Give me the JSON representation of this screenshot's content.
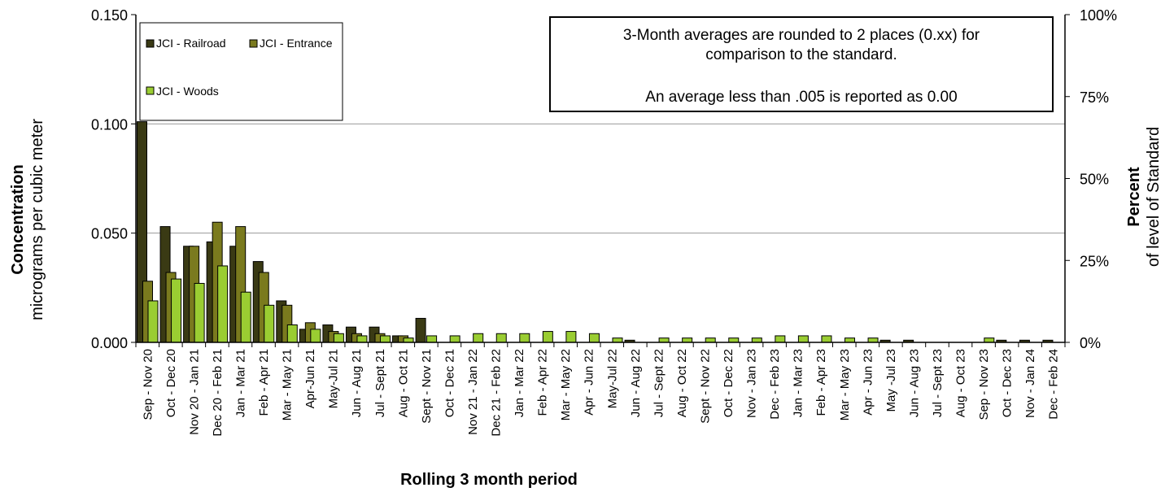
{
  "chart_data": {
    "type": "bar",
    "xlabel": "Rolling 3 month period",
    "ylabel_bold": "Concentration",
    "ylabel": "micrograms per cubic meter",
    "y2label_bold": "Percent",
    "y2label": "of level of Standard",
    "ylim": [
      0,
      0.15
    ],
    "yticks": [
      "0.000",
      "0.050",
      "0.100",
      "0.150"
    ],
    "yticks_values": [
      0,
      0.05,
      0.1,
      0.15
    ],
    "y2ticks": [
      "0%",
      "25%",
      "50%",
      "75%",
      "100%"
    ],
    "y2ticks_fraction": [
      0,
      0.25,
      0.5,
      0.75,
      1.0
    ],
    "grid_values": [
      0.05,
      0.1
    ],
    "annotation": [
      "3-Month averages are rounded to 2 places (0.xx) for",
      "comparison to the standard.",
      "",
      "An average less than .005 is reported as 0.00"
    ],
    "legend": [
      {
        "name": "JCI - Railroad",
        "color": "#3a3a14"
      },
      {
        "name": "JCI - Entrance",
        "color": "#7a7a1e"
      },
      {
        "name": "JCI - Woods",
        "color": "#9acd32"
      }
    ],
    "categories": [
      "Sep - Nov 20",
      "Oct - Dec 20",
      "Nov 20 - Jan 21",
      "Dec 20 - Feb 21",
      "Jan - Mar 21",
      "Feb - Apr 21",
      "Mar - May 21",
      "Apr-Jun 21",
      "May-Jul 21",
      "Jun - Aug 21",
      "Jul - Sept 21",
      "Aug - Oct 21",
      "Sept - Nov 21",
      "Oct - Dec 21",
      "Nov 21 - Jan 22",
      "Dec 21 - Feb 22",
      "Jan - Mar 22",
      "Feb - Apr 22",
      "Mar - May 22",
      "Apr - Jun 22",
      "May-Jul 22",
      "Jun - Aug 22",
      "Jul - Sept 22",
      "Aug - Oct 22",
      "Sept - Nov 22",
      "Oct - Dec 22",
      "Nov - Jan 23",
      "Dec - Feb 23",
      "Jan - Mar 23",
      "Feb - Apr 23",
      "Mar - May 23",
      "Apr - Jun 23",
      "May -Jul 23",
      "Jun - Aug 23",
      "Jul - Sept 23",
      "Aug - Oct 23",
      "Sep - Nov 23",
      "Oct - Dec 23",
      "Nov - Jan 24",
      "Dec - Feb 24"
    ],
    "series": [
      {
        "name": "JCI - Railroad",
        "color": "#3a3a14",
        "values": [
          0.101,
          0.053,
          0.044,
          0.046,
          0.044,
          0.037,
          0.019,
          0.006,
          0.008,
          0.007,
          0.007,
          0.003,
          0.011,
          null,
          null,
          null,
          null,
          null,
          null,
          null,
          null,
          0.001,
          null,
          null,
          null,
          null,
          null,
          null,
          null,
          null,
          null,
          null,
          0.001,
          0.001,
          null,
          null,
          null,
          0.001,
          0.001,
          0.001
        ]
      },
      {
        "name": "JCI - Entrance",
        "color": "#7a7a1e",
        "values": [
          0.028,
          0.032,
          0.044,
          0.055,
          0.053,
          0.032,
          0.017,
          0.009,
          0.005,
          0.004,
          0.004,
          0.003,
          null,
          null,
          null,
          null,
          null,
          null,
          null,
          null,
          null,
          null,
          null,
          null,
          null,
          null,
          null,
          null,
          null,
          null,
          null,
          null,
          null,
          null,
          null,
          null,
          null,
          null,
          null,
          null
        ]
      },
      {
        "name": "JCI - Woods",
        "color": "#9acd32",
        "values": [
          0.019,
          0.029,
          0.027,
          0.035,
          0.023,
          0.017,
          0.008,
          0.006,
          0.004,
          0.003,
          0.003,
          0.002,
          0.003,
          0.003,
          0.004,
          0.004,
          0.004,
          0.005,
          0.005,
          0.004,
          0.002,
          null,
          0.002,
          0.002,
          0.002,
          0.002,
          0.002,
          0.003,
          0.003,
          0.003,
          0.002,
          0.002,
          null,
          null,
          null,
          null,
          0.002,
          null,
          null,
          null
        ]
      }
    ]
  }
}
